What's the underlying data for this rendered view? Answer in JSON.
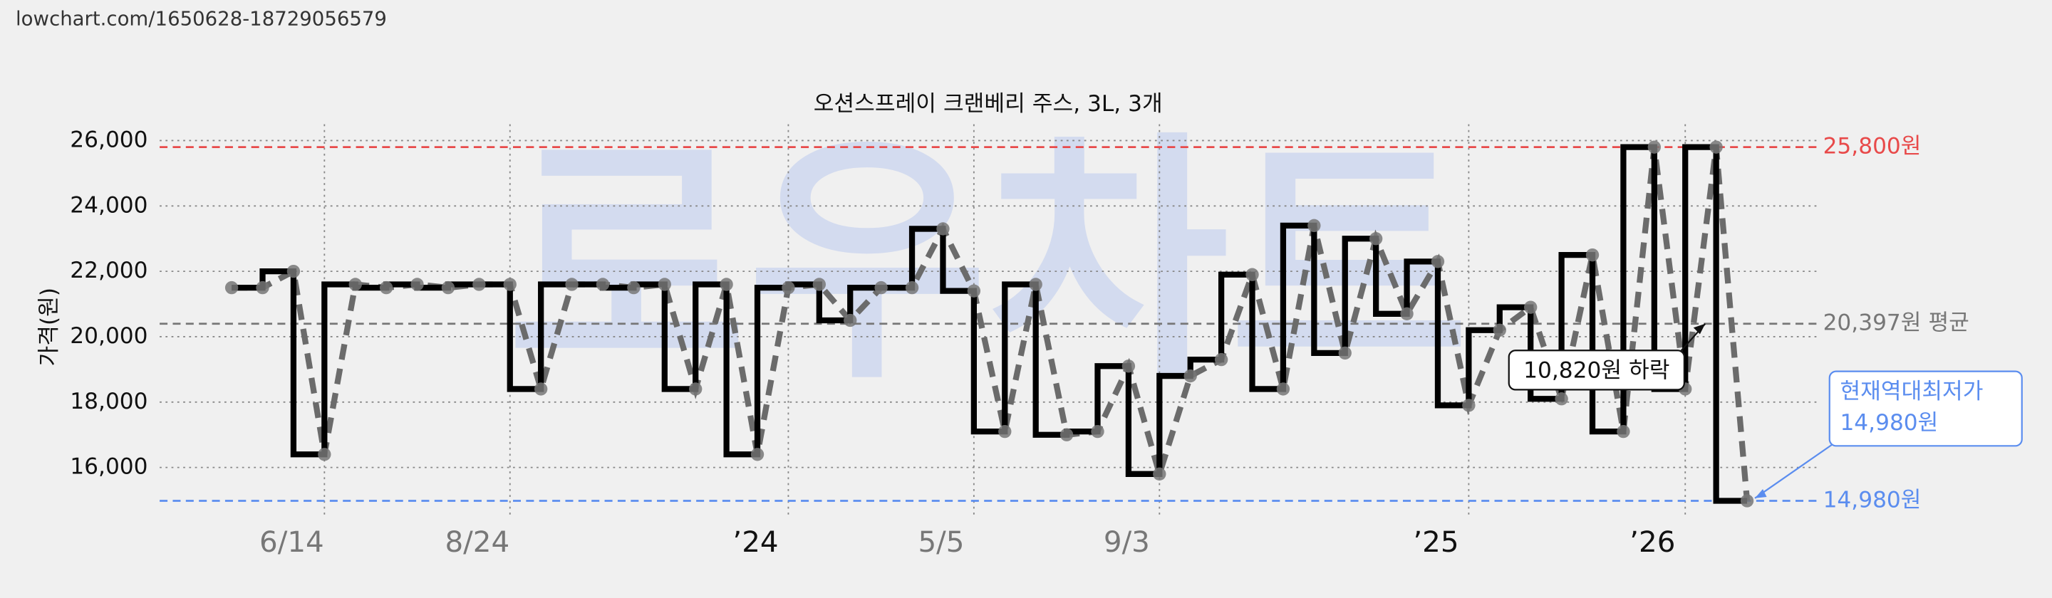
{
  "source": "lowchart.com/1650628-18729056579",
  "chart_data": {
    "type": "line",
    "title": "오션스프레이 크랜베리 주스, 3L, 3개",
    "y_label": "가격(원)",
    "watermark": "로우차트",
    "categories": [
      null,
      null,
      null,
      "6/14",
      null,
      null,
      null,
      null,
      null,
      "8/24",
      null,
      null,
      null,
      null,
      null,
      null,
      null,
      null,
      "’24",
      null,
      null,
      null,
      null,
      null,
      "5/5",
      null,
      null,
      null,
      null,
      null,
      "9/3",
      null,
      null,
      null,
      null,
      null,
      null,
      null,
      null,
      null,
      "’25",
      null,
      null,
      null,
      null,
      null,
      null,
      "’26",
      null,
      null
    ],
    "series": [
      {
        "name": "가격",
        "color": "#000000",
        "dash_color": "#6b6b6b",
        "values": [
          21500,
          21500,
          22000,
          16400,
          21600,
          21500,
          21600,
          21500,
          21600,
          21600,
          18400,
          21600,
          21600,
          21500,
          21600,
          18400,
          21600,
          16400,
          21500,
          21600,
          20500,
          21500,
          21500,
          23300,
          21400,
          17100,
          21600,
          17000,
          17100,
          19100,
          15800,
          18800,
          19300,
          21900,
          18400,
          23400,
          19500,
          23000,
          20700,
          22300,
          17900,
          20200,
          20900,
          18100,
          22500,
          17100,
          25800,
          18400,
          25800,
          14980
        ]
      }
    ],
    "ylim": [
      14500,
      26500
    ],
    "yticks": [
      {
        "value": 16000,
        "label": "16,000"
      },
      {
        "value": 18000,
        "label": "18,000"
      },
      {
        "value": 20000,
        "label": "20,000"
      },
      {
        "value": 22000,
        "label": "22,000"
      },
      {
        "value": 24000,
        "label": "24,000"
      },
      {
        "value": 26000,
        "label": "26,000"
      }
    ],
    "grid": true,
    "reference_lines": [
      {
        "value": 25800,
        "label": "25,800원",
        "color": "#e84a4a"
      },
      {
        "value": 20397,
        "label": "20,397원 평균",
        "color": "#777777"
      },
      {
        "value": 14980,
        "label": "14,980원",
        "color": "#5b8def"
      }
    ],
    "annotations": {
      "drop": "10,820원 하락",
      "lowest": [
        "현재역대최저가",
        "14,980원"
      ]
    }
  }
}
